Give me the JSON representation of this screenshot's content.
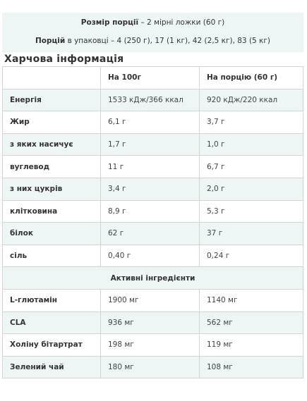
{
  "serving": {
    "size_label": "Розмір порції",
    "size_value": " – 2 мірні ложки (60 г)",
    "portions_label": "Порцій",
    "portions_value": " в упаковці – 4 (250 г), 17 (1 кг), 42 (2,5 кг), 83 (5 кг)"
  },
  "section_title": "Харчова інформація",
  "table": {
    "headers": [
      "",
      "На 100г",
      "На порцію (60 г)"
    ],
    "rows": [
      {
        "name": "Енергія",
        "per100": "1533 кДж/366 ккал",
        "perServing": "920 кДж/220 ккал"
      },
      {
        "name": "Жир",
        "per100": "6,1 г",
        "perServing": "3,7 г"
      },
      {
        "name": "з яких насичує",
        "per100": "1,7 г",
        "perServing": "1,0 г"
      },
      {
        "name": "вуглевод",
        "per100": "11 г",
        "perServing": "6,7 г"
      },
      {
        "name": "з них цукрів",
        "per100": "3,4 г",
        "perServing": "2,0 г"
      },
      {
        "name": "клітковина",
        "per100": "8,9 г",
        "perServing": "5,3 г"
      },
      {
        "name": "білок",
        "per100": "62 г",
        "perServing": "37 г"
      },
      {
        "name": "сіль",
        "per100": "0,40 г",
        "perServing": "0,24 г"
      }
    ],
    "subheader": "Активні інгредієнти",
    "active_rows": [
      {
        "name": "L-глютамін",
        "per100": "1900 мг",
        "perServing": "1140 мг"
      },
      {
        "name": "CLA",
        "per100": "936 мг",
        "perServing": "562 мг"
      },
      {
        "name": "Холіну бітартрат",
        "per100": "198 мг",
        "perServing": "119 мг"
      },
      {
        "name": "Зелений чай",
        "per100": "180 мг",
        "perServing": "108 мг"
      }
    ]
  },
  "colors": {
    "row_tint": "#edf6f5",
    "border": "#d4d4d4",
    "text": "#333333"
  }
}
